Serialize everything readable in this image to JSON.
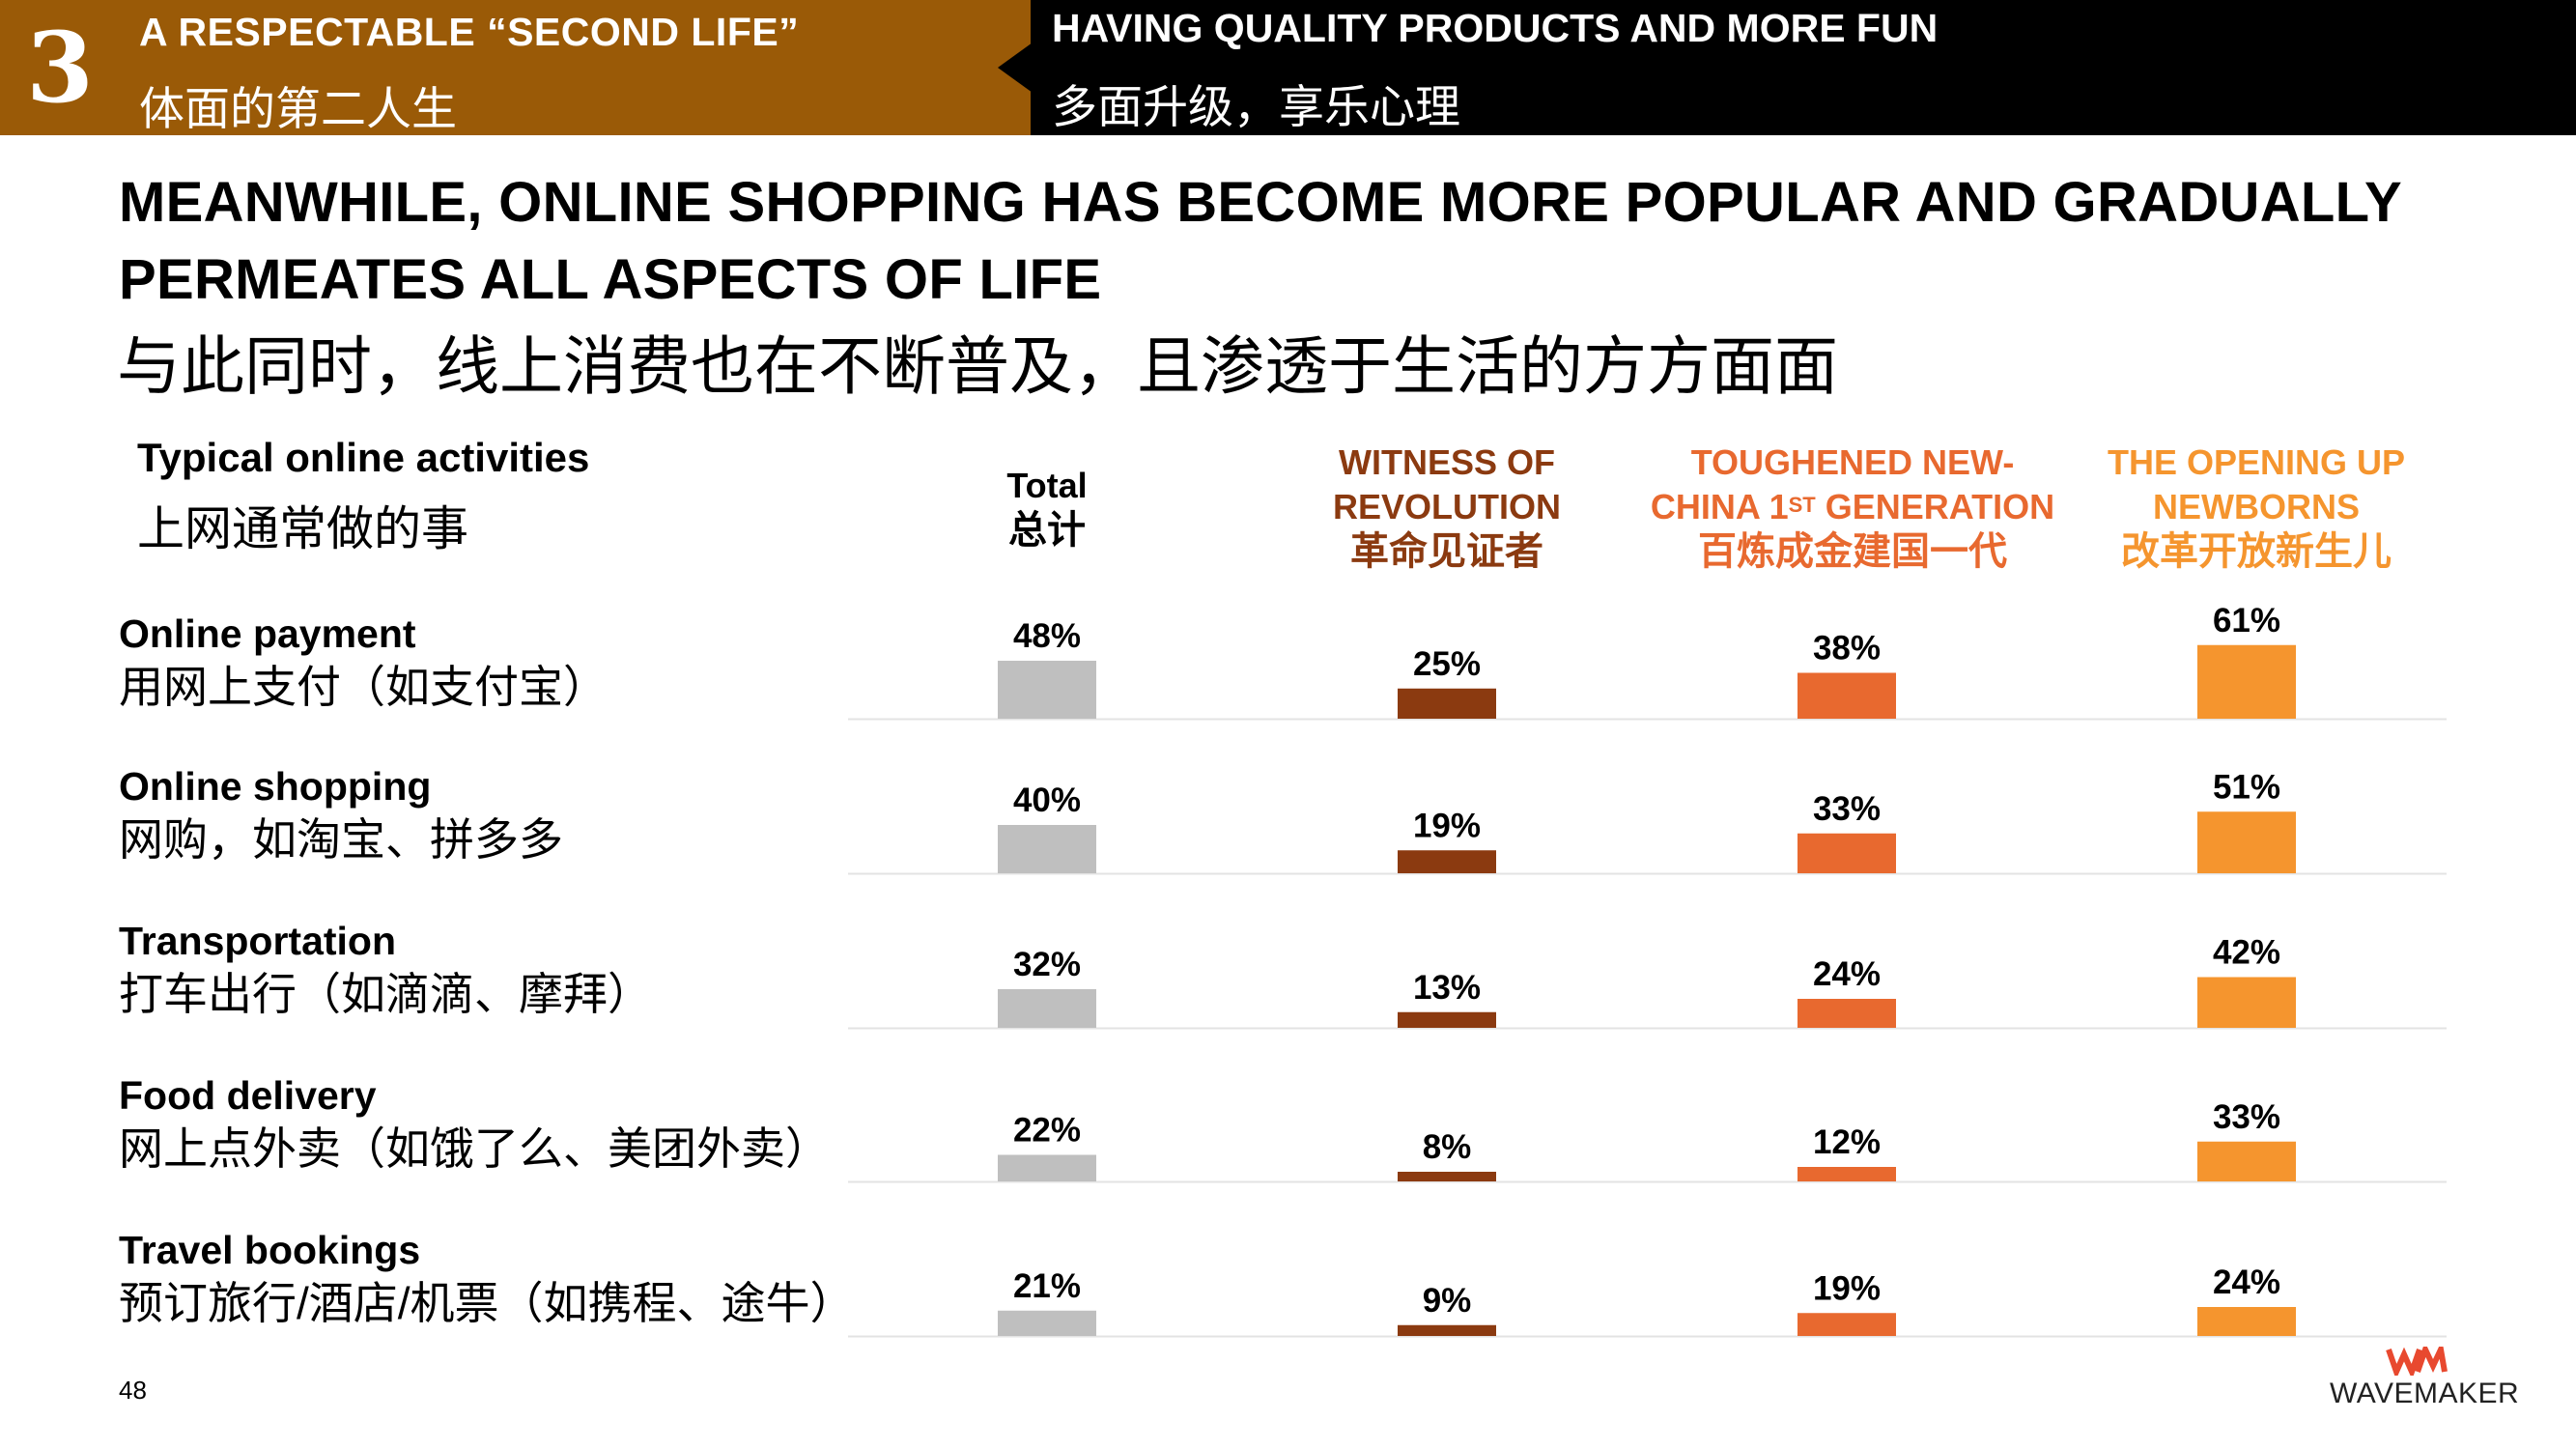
{
  "header": {
    "section_number": "3",
    "left_title": "A RESPECTABLE “SECOND LIFE”",
    "left_subtitle": "体面的第二人生",
    "right_title": "HAVING QUALITY PRODUCTS AND MORE FUN",
    "right_subtitle": "多面升级，享乐心理"
  },
  "title": {
    "en": "MEANWHILE, ONLINE SHOPPING HAS BECOME MORE POPULAR AND GRADUALLY PERMEATES ALL ASPECTS OF LIFE",
    "zh": "与此同时，线上消费也在不断普及，且渗透于生活的方方面面"
  },
  "section": {
    "en": "Typical online activities",
    "zh": "上网通常做的事"
  },
  "columns": [
    {
      "en1": "Total",
      "en2": "",
      "en_sup": "",
      "en2_after": "",
      "zh": "总计",
      "color": "#000000"
    },
    {
      "en1": "WITNESS OF",
      "en2": "REVOLUTION",
      "en_sup": "",
      "en2_after": "",
      "zh": "革命见证者",
      "color": "#8b3a10"
    },
    {
      "en1": "TOUGHENED NEW-",
      "en2": "CHINA 1",
      "en_sup": "ST",
      "en2_after": " GENERATION",
      "zh": "百炼成金建国一代",
      "color": "#e8692f"
    },
    {
      "en1": "THE OPENING UP",
      "en2": "NEWBORNS",
      "en_sup": "",
      "en2_after": "",
      "zh": "改革开放新生儿",
      "color": "#f5952e"
    }
  ],
  "rows": [
    {
      "en": "Online payment",
      "zh": "用网上支付（如支付宝）"
    },
    {
      "en": "Online shopping",
      "zh": "网购，如淘宝、拼多多"
    },
    {
      "en": "Transportation",
      "zh": "打车出行（如滴滴、摩拜）"
    },
    {
      "en": "Food delivery",
      "zh": "网上点外卖（如饿了么、美团外卖）"
    },
    {
      "en": "Travel bookings",
      "zh": "预订旅行/酒店/机票（如携程、途牛）"
    }
  ],
  "chart_data": {
    "type": "bar",
    "categories": [
      "Online payment",
      "Online shopping",
      "Transportation",
      "Food delivery",
      "Travel bookings"
    ],
    "series": [
      {
        "name": "Total",
        "values": [
          48,
          40,
          32,
          22,
          21
        ],
        "color": "#bfbfbf"
      },
      {
        "name": "WITNESS OF REVOLUTION",
        "values": [
          25,
          19,
          13,
          8,
          9
        ],
        "color": "#8b3a10"
      },
      {
        "name": "TOUGHENED NEW-CHINA 1ST GENERATION",
        "values": [
          38,
          33,
          24,
          12,
          19
        ],
        "color": "#e8692f"
      },
      {
        "name": "THE OPENING UP NEWBORNS",
        "values": [
          61,
          51,
          42,
          33,
          24
        ],
        "color": "#f5952e"
      }
    ],
    "value_suffix": "%",
    "ylim": [
      0,
      100
    ],
    "grid": false,
    "legend": "top"
  },
  "footer": {
    "page_number": "48",
    "logo_text": "WAVEMAKER"
  }
}
